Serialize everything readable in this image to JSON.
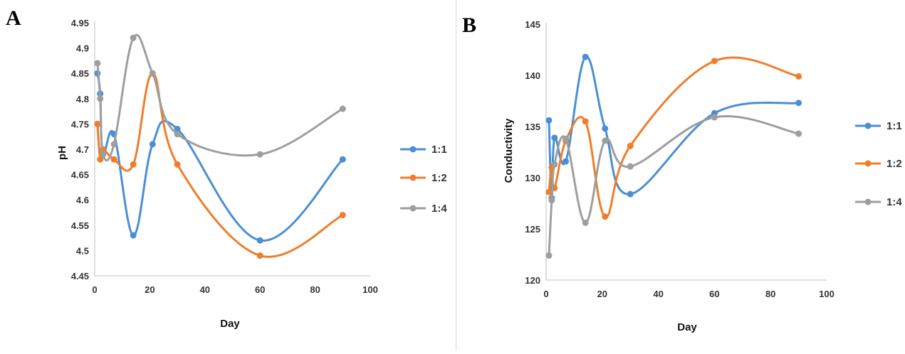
{
  "panels": [
    {
      "letter": "A",
      "chart_data": {
        "type": "line",
        "smooth": true,
        "xlabel": "Day",
        "ylabel": "pH",
        "xlim": [
          0,
          100
        ],
        "ylim": [
          4.45,
          4.95
        ],
        "xticks": [
          0,
          20,
          40,
          60,
          80,
          100
        ],
        "yticks": [
          4.45,
          4.5,
          4.55,
          4.6,
          4.65,
          4.7,
          4.75,
          4.8,
          4.85,
          4.9,
          4.95
        ],
        "ytick_labels": [
          "4.45",
          "4.5",
          "4.55",
          "4.6",
          "4.65",
          "4.7",
          "4.75",
          "4.8",
          "4.85",
          "4.9",
          "4.95"
        ],
        "grid": false,
        "legend": "right",
        "series": [
          {
            "name": "1:1",
            "color": "#4a8fd4",
            "x": [
              1,
              2,
              3,
              7,
              14,
              21,
              30,
              60,
              90
            ],
            "y": [
              4.85,
              4.81,
              4.69,
              4.73,
              4.53,
              4.71,
              4.74,
              4.52,
              4.68
            ]
          },
          {
            "name": "1:2",
            "color": "#f07d2b",
            "x": [
              1,
              2,
              3,
              7,
              14,
              21,
              30,
              60,
              90
            ],
            "y": [
              4.75,
              4.68,
              4.7,
              4.68,
              4.67,
              4.85,
              4.67,
              4.49,
              4.57
            ]
          },
          {
            "name": "1:4",
            "color": "#9e9e9e",
            "x": [
              1,
              2,
              3,
              7,
              14,
              21,
              30,
              60,
              90
            ],
            "y": [
              4.87,
              4.8,
              4.69,
              4.71,
              4.92,
              4.85,
              4.73,
              4.69,
              4.78
            ]
          }
        ]
      }
    },
    {
      "letter": "B",
      "chart_data": {
        "type": "line",
        "smooth": true,
        "xlabel": "Day",
        "ylabel": "Conductivity",
        "xlim": [
          0,
          100
        ],
        "ylim": [
          120,
          145
        ],
        "xticks": [
          0,
          20,
          40,
          60,
          80,
          100
        ],
        "yticks": [
          120,
          125,
          130,
          135,
          140,
          145
        ],
        "ytick_labels": [
          "120",
          "125",
          "130",
          "135",
          "140",
          "145"
        ],
        "grid": false,
        "legend": "right",
        "series": [
          {
            "name": "1:1",
            "color": "#4a8fd4",
            "x": [
              1,
              2,
              3,
              7,
              14,
              21,
              30,
              60,
              90
            ],
            "y": [
              135.6,
              128.0,
              133.9,
              131.6,
              141.8,
              134.8,
              128.4,
              136.3,
              137.3
            ]
          },
          {
            "name": "1:2",
            "color": "#f07d2b",
            "x": [
              1,
              2,
              3,
              7,
              14,
              21,
              30,
              60,
              90
            ],
            "y": [
              128.6,
              131.0,
              129.0,
              133.6,
              135.5,
              126.2,
              133.1,
              141.4,
              139.9
            ]
          },
          {
            "name": "1:4",
            "color": "#9e9e9e",
            "x": [
              1,
              2,
              3,
              7,
              14,
              21,
              30,
              60,
              90
            ],
            "y": [
              122.4,
              127.8,
              131.3,
              133.8,
              125.6,
              133.6,
              131.1,
              135.9,
              134.3
            ]
          }
        ]
      }
    }
  ]
}
